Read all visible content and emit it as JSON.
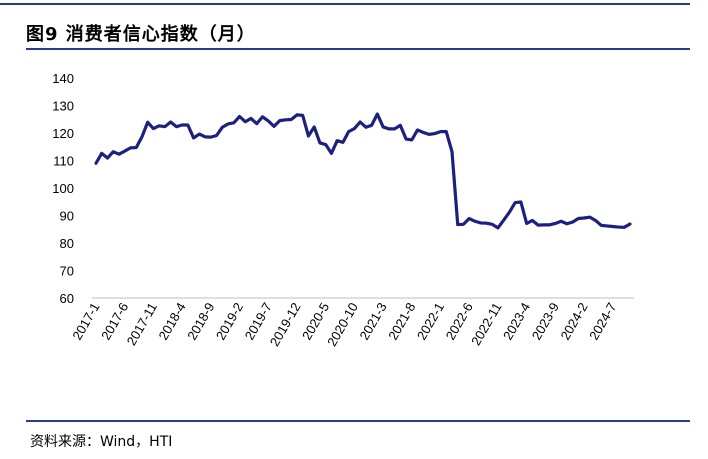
{
  "header": {
    "title": "图9  消费者信心指数（月）"
  },
  "footer": {
    "source": "资料来源：Wind，HTI"
  },
  "colors": {
    "line": "#1c2180",
    "rule": "#2a3a8c"
  },
  "chart_data": {
    "type": "line",
    "title": "",
    "xlabel": "",
    "ylabel": "",
    "ylim": [
      60,
      140
    ],
    "yticks": [
      140,
      130,
      120,
      110,
      100,
      90,
      80,
      70,
      60
    ],
    "grid": false,
    "legend": "none",
    "xtick_labels": [
      "2017-1",
      "2017-6",
      "2017-11",
      "2018-4",
      "2018-9",
      "2019-2",
      "2019-7",
      "2019-12",
      "2020-5",
      "2020-10",
      "2021-3",
      "2021-8",
      "2022-1",
      "2022-6",
      "2022-11",
      "2023-4",
      "2023-9",
      "2024-2",
      "2024-7"
    ],
    "series": [
      {
        "name": "",
        "x": [
          "2017-1",
          "2017-2",
          "2017-3",
          "2017-4",
          "2017-5",
          "2017-6",
          "2017-7",
          "2017-8",
          "2017-9",
          "2017-10",
          "2017-11",
          "2017-12",
          "2018-1",
          "2018-2",
          "2018-3",
          "2018-4",
          "2018-5",
          "2018-6",
          "2018-7",
          "2018-8",
          "2018-9",
          "2018-10",
          "2018-11",
          "2018-12",
          "2019-1",
          "2019-2",
          "2019-3",
          "2019-4",
          "2019-5",
          "2019-6",
          "2019-7",
          "2019-8",
          "2019-9",
          "2019-10",
          "2019-11",
          "2019-12",
          "2020-1",
          "2020-2",
          "2020-3",
          "2020-4",
          "2020-5",
          "2020-6",
          "2020-7",
          "2020-8",
          "2020-9",
          "2020-10",
          "2020-11",
          "2020-12",
          "2021-1",
          "2021-2",
          "2021-3",
          "2021-4",
          "2021-5",
          "2021-6",
          "2021-7",
          "2021-8",
          "2021-9",
          "2021-10",
          "2021-11",
          "2021-12",
          "2022-1",
          "2022-2",
          "2022-3",
          "2022-4",
          "2022-5",
          "2022-6",
          "2022-7",
          "2022-8",
          "2022-9",
          "2022-10",
          "2022-11",
          "2022-12",
          "2023-1",
          "2023-2",
          "2023-3",
          "2023-4",
          "2023-5",
          "2023-6",
          "2023-7",
          "2023-8",
          "2023-9",
          "2023-10",
          "2023-11",
          "2023-12",
          "2024-1",
          "2024-2",
          "2024-3",
          "2024-4",
          "2024-5",
          "2024-6",
          "2024-7",
          "2024-8",
          "2024-9",
          "2024-10"
        ],
        "values": [
          109.0,
          112.6,
          110.9,
          113.2,
          112.3,
          113.4,
          114.6,
          114.7,
          118.6,
          123.9,
          121.6,
          122.6,
          122.3,
          124.0,
          122.3,
          122.9,
          122.9,
          118.2,
          119.6,
          118.6,
          118.5,
          119.1,
          122.1,
          123.3,
          123.7,
          126.0,
          124.1,
          125.3,
          123.4,
          125.9,
          124.4,
          122.4,
          124.5,
          124.8,
          124.9,
          126.6,
          126.4,
          118.9,
          122.2,
          116.4,
          115.8,
          112.6,
          117.2,
          116.6,
          120.5,
          121.6,
          124.0,
          122.1,
          122.8,
          126.9,
          122.2,
          121.5,
          121.5,
          122.8,
          117.8,
          117.5,
          121.1,
          120.2,
          119.5,
          119.8,
          120.5,
          120.5,
          113.2,
          86.7,
          86.8,
          88.9,
          87.9,
          87.3,
          87.2,
          86.8,
          85.5,
          88.3,
          91.2,
          94.7,
          94.9,
          87.1,
          88.2,
          86.5,
          86.6,
          86.6,
          87.1,
          87.9,
          87.0,
          87.6,
          88.9,
          89.1,
          89.4,
          88.2,
          86.4,
          86.2,
          86.0,
          85.8,
          85.7,
          86.9
        ]
      }
    ]
  }
}
